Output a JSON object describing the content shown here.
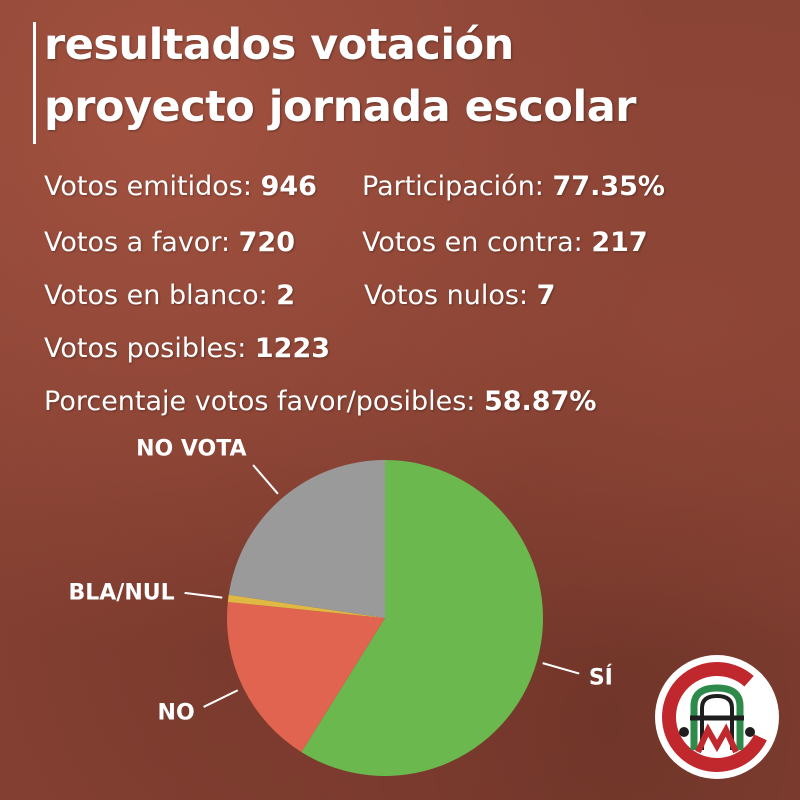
{
  "title": {
    "line1": "resultados votación",
    "line2": "proyecto jornada escolar"
  },
  "stats": {
    "emitidos": {
      "label": "Votos emitidos: ",
      "value": "946"
    },
    "participacion": {
      "label": "Participación: ",
      "value": "77.35%"
    },
    "favor": {
      "label": "Votos a favor: ",
      "value": "720"
    },
    "contra": {
      "label": "Votos en contra: ",
      "value": "217"
    },
    "blanco": {
      "label": "Votos en blanco: ",
      "value": "2"
    },
    "nulos": {
      "label": "Votos nulos: ",
      "value": "7"
    },
    "posibles": {
      "label": "Votos posibles: ",
      "value": "1223"
    },
    "porcentaje": {
      "label": "Porcentaje votos favor/posibles: ",
      "value": "58.87%"
    }
  },
  "chart_data": {
    "type": "pie",
    "title": "",
    "slices": [
      {
        "label": "SÍ",
        "value": 720,
        "color": "#6ab84e"
      },
      {
        "label": "NO",
        "value": 217,
        "color": "#e0644f"
      },
      {
        "label": "BLA/NUL",
        "value": 9,
        "color": "#e0b844"
      },
      {
        "label": "NO VOTA",
        "value": 277,
        "color": "#9a9a9a"
      }
    ],
    "start_angle_deg": 0,
    "direction": "clockwise",
    "legend": "none"
  },
  "logo": {
    "letters": "CPM",
    "colors": {
      "ring": "#c0282d",
      "inner": "#2e8a4a",
      "bg": "#ffffff"
    }
  }
}
